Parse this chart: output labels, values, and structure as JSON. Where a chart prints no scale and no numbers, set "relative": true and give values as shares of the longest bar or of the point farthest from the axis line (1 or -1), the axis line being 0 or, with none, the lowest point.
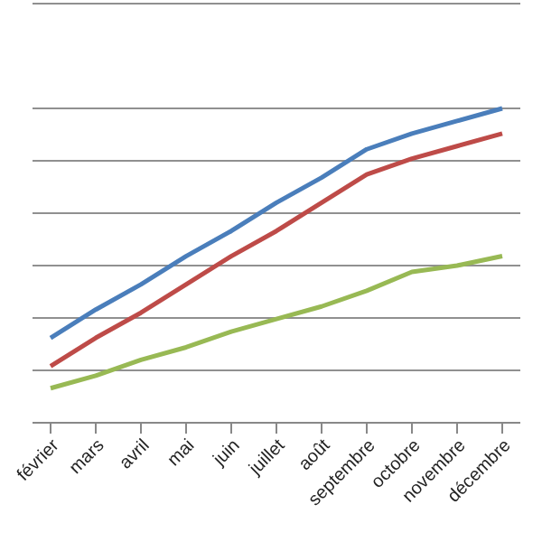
{
  "chart_data": {
    "type": "line",
    "relative": true,
    "grid": "y",
    "legend": false,
    "marker": "none",
    "categories": [
      "février",
      "mars",
      "avril",
      "mai",
      "juin",
      "juillet",
      "août",
      "septembre",
      "octobre",
      "novembre",
      "décembre"
    ],
    "series": [
      {
        "color": "#4a7ebb",
        "values": [
          0.27,
          0.36,
          0.44,
          0.53,
          0.61,
          0.7,
          0.78,
          0.87,
          0.92,
          0.96,
          1
        ]
      },
      {
        "color": "#be4b48",
        "values": [
          0.18,
          0.27,
          0.35,
          0.44,
          0.53,
          0.61,
          0.7,
          0.79,
          0.84,
          0.88,
          0.92
        ]
      },
      {
        "color": "#98b954",
        "values": [
          0.11,
          0.15,
          0.2,
          0.24,
          0.29,
          0.33,
          0.37,
          0.42,
          0.48,
          0.5,
          0.53
        ]
      }
    ]
  }
}
